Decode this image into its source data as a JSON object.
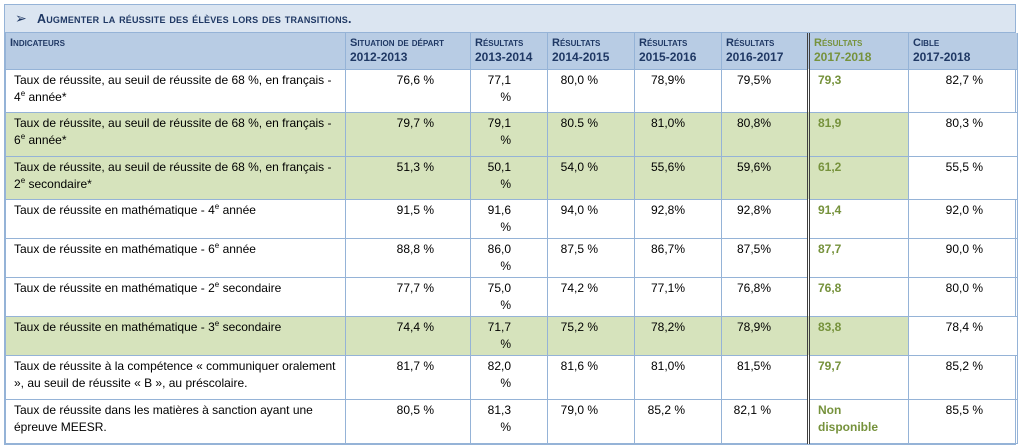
{
  "title": "Augmenter la réussite des élèves lors des transitions.",
  "header": {
    "indicateurs": "Indicateurs",
    "columns": [
      {
        "line1": "Situation de départ",
        "line2": "2012-2013"
      },
      {
        "line1": "Résultats",
        "line2": "2013-2014"
      },
      {
        "line1": "Résultats",
        "line2": "2014-2015"
      },
      {
        "line1": "Résultats",
        "line2": "2015-2016"
      },
      {
        "line1": "Résultats",
        "line2": "2016-2017"
      },
      {
        "line1": "Résultats",
        "line2": "2017-2018"
      },
      {
        "line1": "Cible",
        "line2": "2017-2018"
      }
    ]
  },
  "rows": [
    {
      "label_a": "Taux de réussite, au seuil de réussite de 68 %, en français - 4",
      "sup": "e",
      "label_b": " année*",
      "values": [
        "76,6 %",
        "77,1 %",
        "80,0 %",
        "78,9%",
        "79,5%",
        "79,3",
        "82,7 %"
      ],
      "highlight": false
    },
    {
      "label_a": "Taux de réussite, au seuil de réussite de 68 %, en français - 6",
      "sup": "e",
      "label_b": " année*",
      "values": [
        "79,7 %",
        "79,1 %",
        "80.5 %",
        "81,0%",
        "80,8%",
        "81,9",
        "80,3 %"
      ],
      "highlight": true
    },
    {
      "label_a": "Taux de réussite, au seuil de réussite de 68 %, en français - 2",
      "sup": "e",
      "label_b": " secondaire*",
      "values": [
        "51,3 %",
        "50,1 %",
        "54,0 %",
        "55,6%",
        "59,6%",
        "61,2",
        "55,5 %"
      ],
      "highlight": true
    },
    {
      "label_a": "Taux de réussite en mathématique - 4",
      "sup": "e",
      "label_b": " année",
      "values": [
        "91,5 %",
        "91,6 %",
        "94,0 %",
        "92,8%",
        "92,8%",
        "91,4",
        "92,0 %"
      ],
      "highlight": false
    },
    {
      "label_a": "Taux de réussite en mathématique - 6",
      "sup": "e",
      "label_b": " année",
      "values": [
        "88,8 %",
        "86,0 %",
        "87,5 %",
        "86,7%",
        "87,5%",
        "87,7",
        "90,0 %"
      ],
      "highlight": false
    },
    {
      "label_a": "Taux de réussite en mathématique - 2",
      "sup": "e",
      "label_b": " secondaire",
      "values": [
        "77,7 %",
        "75,0 %",
        "74,2 %",
        "77,1%",
        "76,8%",
        "76,8",
        "80,0 %"
      ],
      "highlight": false
    },
    {
      "label_a": "Taux de réussite en mathématique - 3",
      "sup": "e",
      "label_b": " secondaire",
      "values": [
        "74,4 %",
        "71,7 %",
        "75,2 %",
        "78,2%",
        "78,9%",
        "83,8",
        "78,4 %"
      ],
      "highlight": true
    },
    {
      "label_a": "Taux de réussite à la compétence « communiquer oralement », au seuil de réussite « B », au préscolaire.",
      "sup": "",
      "label_b": "",
      "values": [
        "81,7 %",
        "82,0 %",
        "81,6 %",
        "81,0%",
        "81,5%",
        "79,7",
        "85,2 %"
      ],
      "highlight": false
    },
    {
      "label_a": "Taux de réussite dans les matières à sanction ayant une épreuve MEESR.",
      "sup": "",
      "label_b": "",
      "values": [
        "80,5 %",
        "81,3 %",
        "79,0 %",
        "85,2 %",
        "82,1 %",
        "Non disponible",
        "85,5 %"
      ],
      "highlight": false
    }
  ]
}
